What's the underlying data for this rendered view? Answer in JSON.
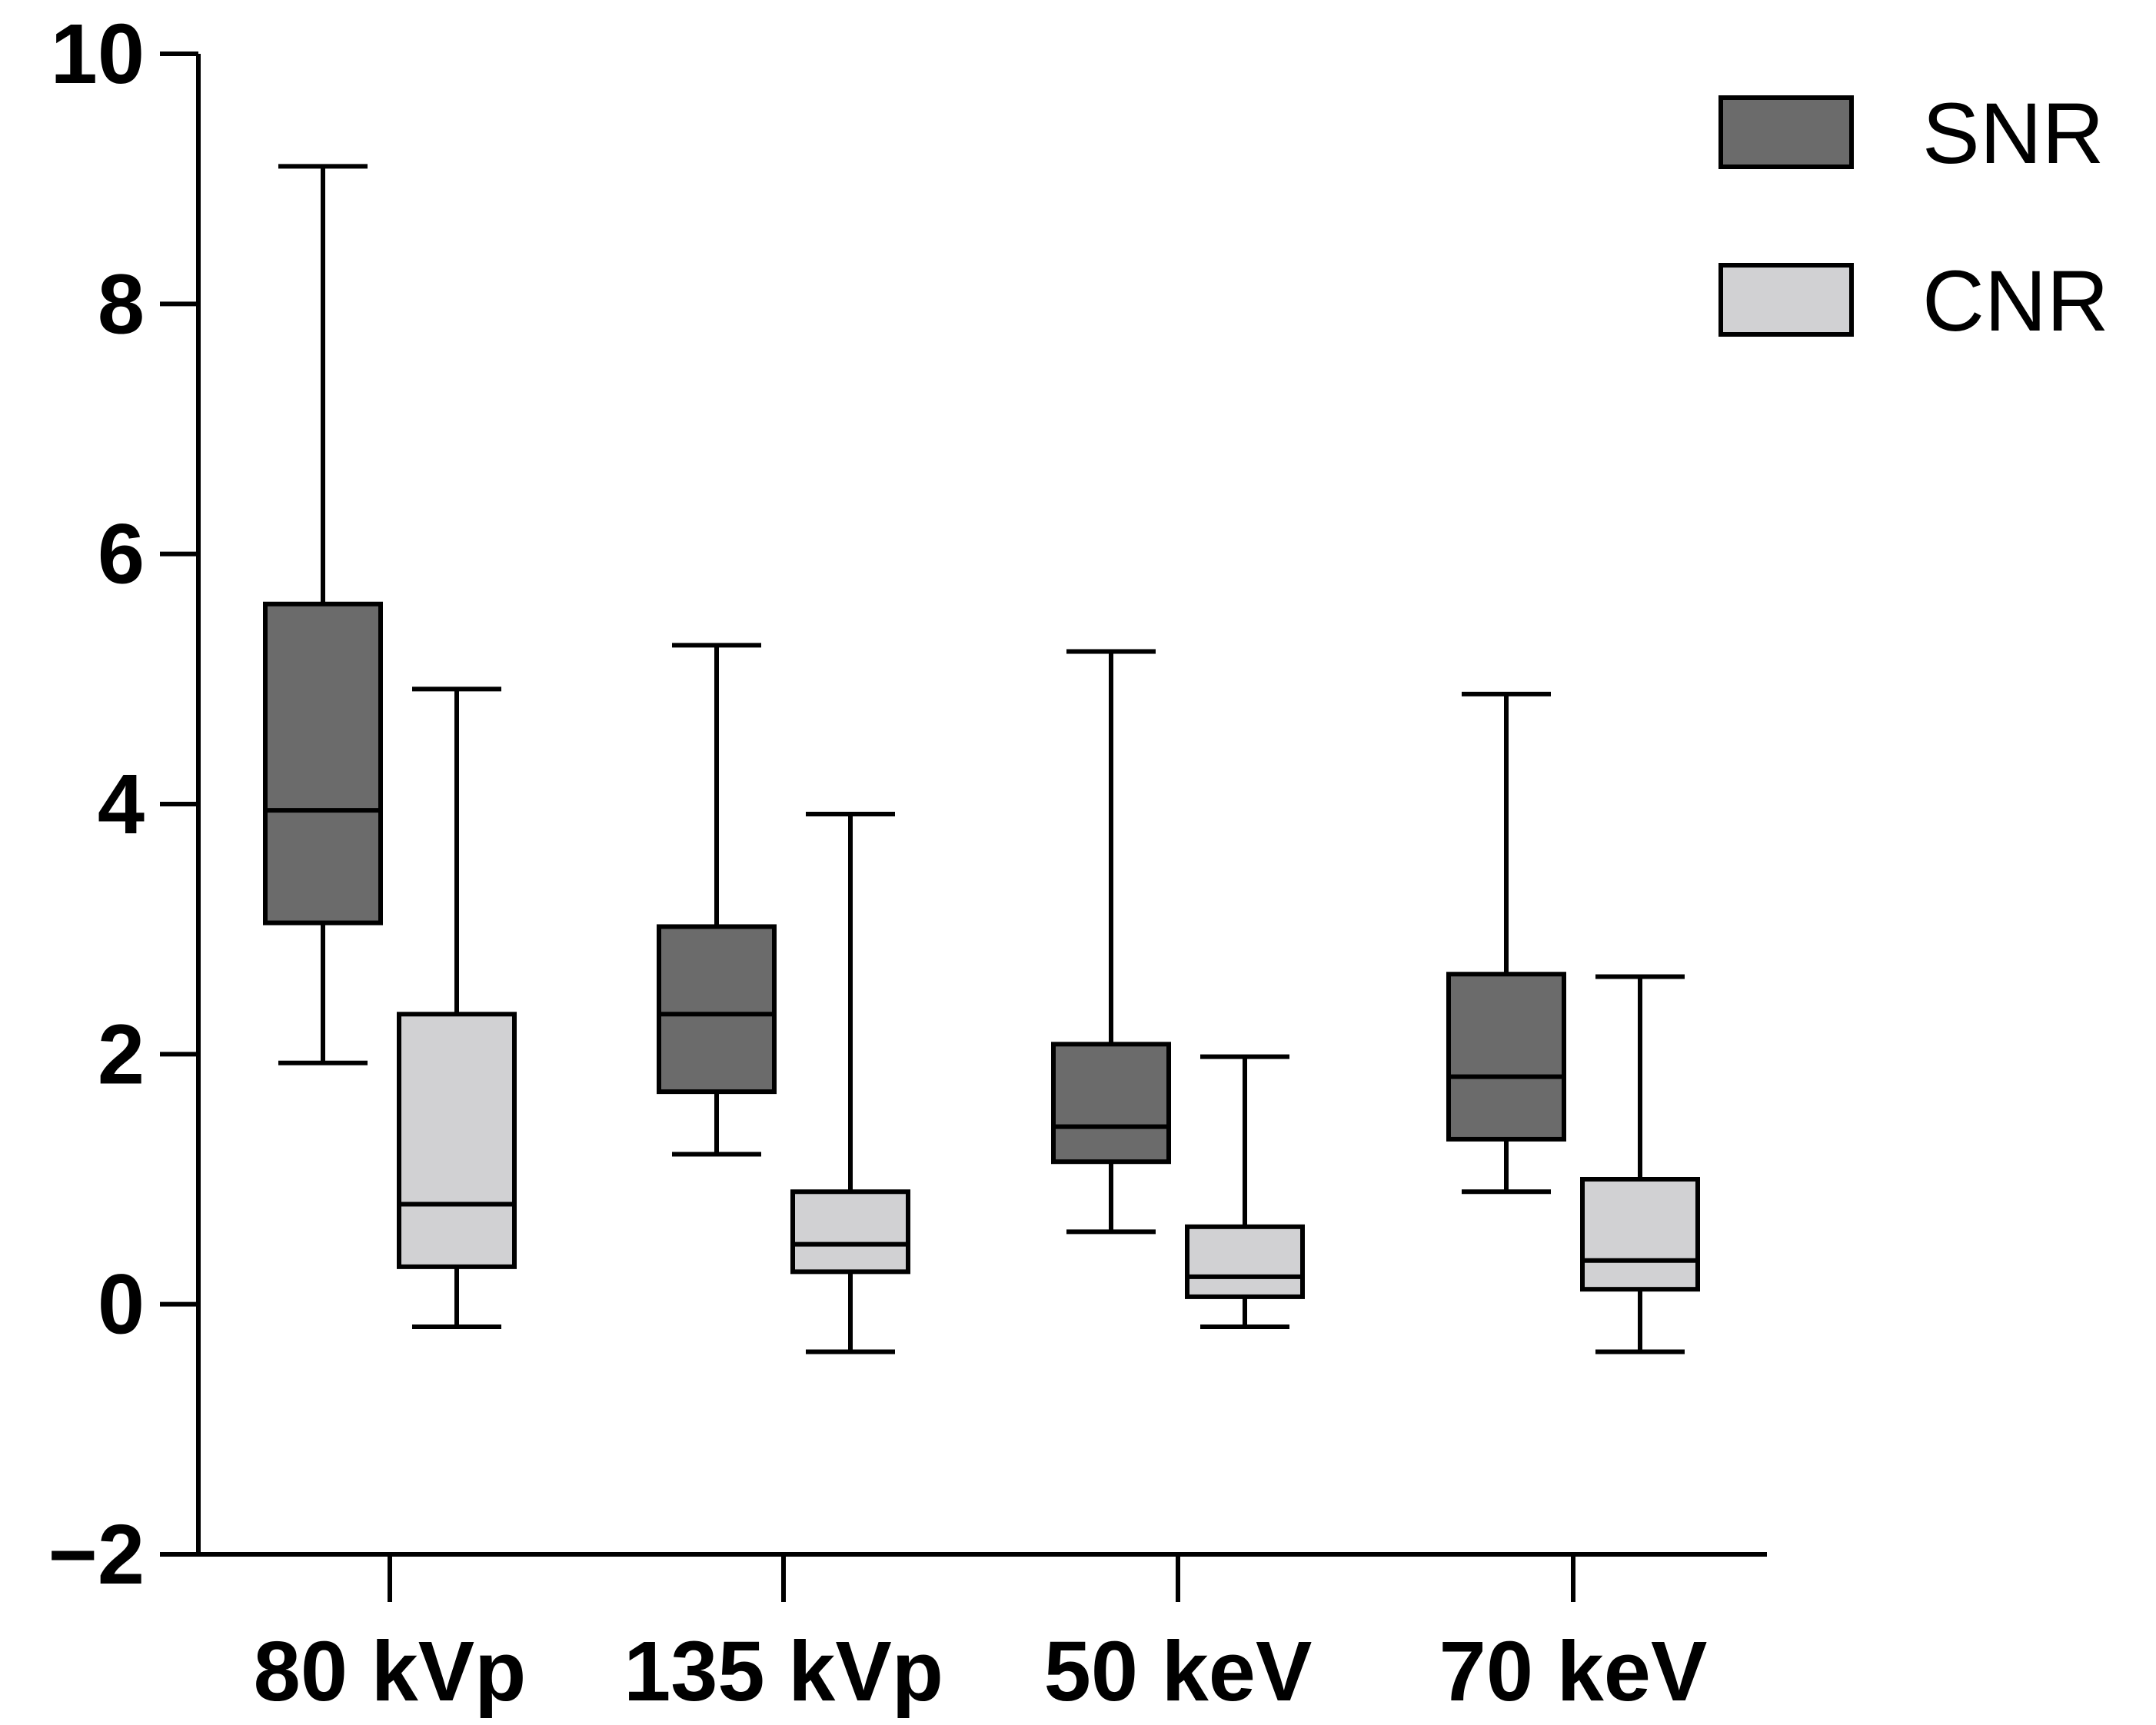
{
  "chart_data": {
    "type": "boxplot",
    "title": "",
    "xlabel": "",
    "ylabel": "",
    "ylim": [
      -2,
      10
    ],
    "yticks": [
      -2,
      0,
      2,
      4,
      6,
      8,
      10
    ],
    "ytick_labels": [
      "−2",
      "0",
      "2",
      "4",
      "6",
      "8",
      "10"
    ],
    "categories": [
      "80 kVp",
      "135 kVp",
      "50 keV",
      "70 keV"
    ],
    "legend_position": "top-right",
    "series": [
      {
        "name": "SNR",
        "color": "#6b6b6b",
        "boxes": [
          {
            "min": 1.93,
            "q1": 3.05,
            "median": 3.95,
            "q3": 5.6,
            "max": 9.1
          },
          {
            "min": 1.2,
            "q1": 1.7,
            "median": 2.32,
            "q3": 3.02,
            "max": 5.27
          },
          {
            "min": 0.58,
            "q1": 1.14,
            "median": 1.42,
            "q3": 2.08,
            "max": 5.22
          },
          {
            "min": 0.9,
            "q1": 1.32,
            "median": 1.82,
            "q3": 2.64,
            "max": 4.88
          }
        ]
      },
      {
        "name": "CNR",
        "color": "#d1d1d3",
        "boxes": [
          {
            "min": -0.18,
            "q1": 0.3,
            "median": 0.8,
            "q3": 2.32,
            "max": 4.92
          },
          {
            "min": -0.38,
            "q1": 0.26,
            "median": 0.48,
            "q3": 0.9,
            "max": 3.92
          },
          {
            "min": -0.18,
            "q1": 0.06,
            "median": 0.22,
            "q3": 0.62,
            "max": 1.98
          },
          {
            "min": -0.38,
            "q1": 0.12,
            "median": 0.35,
            "q3": 1.0,
            "max": 2.62
          }
        ]
      }
    ]
  }
}
